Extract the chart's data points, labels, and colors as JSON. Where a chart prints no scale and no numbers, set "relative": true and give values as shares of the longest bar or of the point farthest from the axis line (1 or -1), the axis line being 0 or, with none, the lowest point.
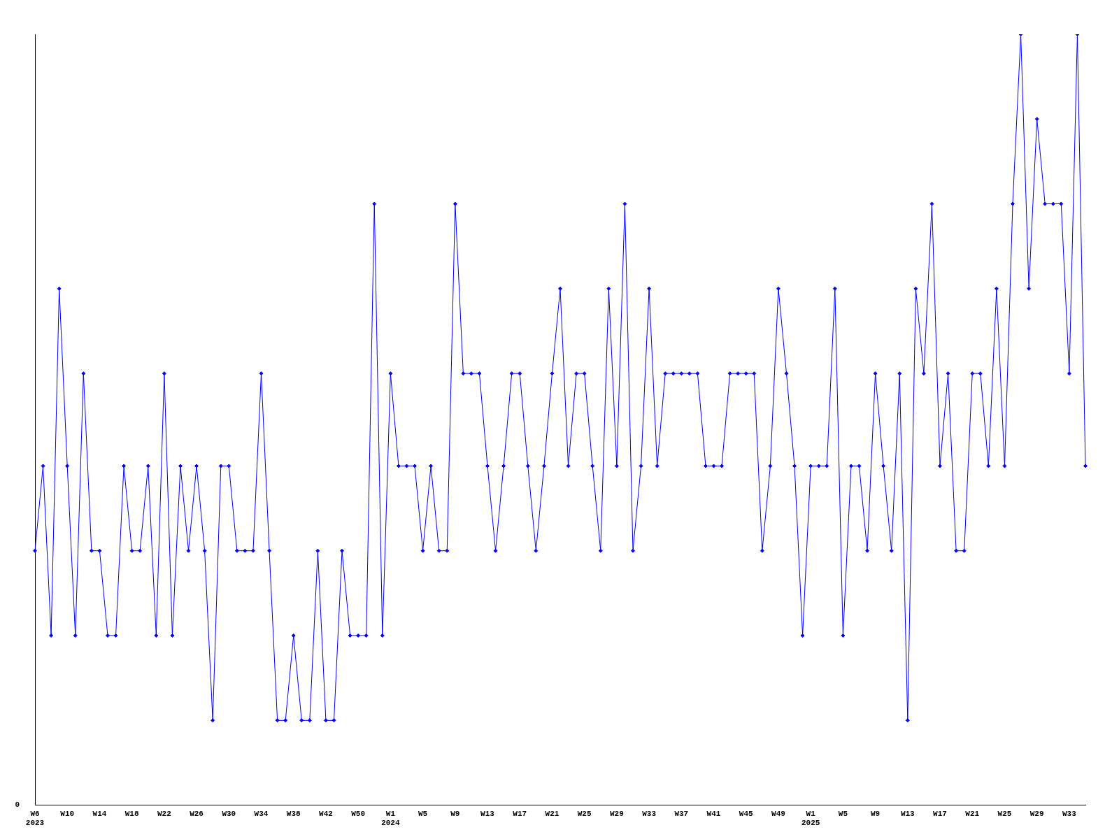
{
  "chart_data": {
    "type": "line",
    "relative": true,
    "color": "#0000ff",
    "marker": "diamond",
    "grid": false,
    "legend": false,
    "annotations": [
      "0"
    ],
    "categories": [
      "W6\n2023",
      null,
      null,
      null,
      "W10",
      null,
      null,
      null,
      "W14",
      null,
      null,
      null,
      "W18",
      null,
      null,
      null,
      "W22",
      null,
      null,
      null,
      "W26",
      null,
      null,
      null,
      "W30",
      null,
      null,
      null,
      "W34",
      null,
      null,
      null,
      "W38",
      null,
      null,
      null,
      "W42",
      null,
      null,
      null,
      "W50",
      null,
      null,
      null,
      "W1\n2024",
      null,
      null,
      null,
      "W5",
      null,
      null,
      null,
      "W9",
      null,
      null,
      null,
      "W13",
      null,
      null,
      null,
      "W17",
      null,
      null,
      null,
      "W21",
      null,
      null,
      null,
      "W25",
      null,
      null,
      null,
      "W29",
      null,
      null,
      null,
      "W33",
      null,
      null,
      null,
      "W37",
      null,
      null,
      null,
      "W41",
      null,
      null,
      null,
      "W45",
      null,
      null,
      null,
      "W49",
      null,
      null,
      null,
      "W1\n2025",
      null,
      null,
      null,
      "W5",
      null,
      null,
      null,
      "W9",
      null,
      null,
      null,
      "W13",
      null,
      null,
      null,
      "W17",
      null,
      null,
      null,
      "W21",
      null,
      null,
      null,
      "W25",
      null,
      null,
      null,
      "W29",
      null,
      null,
      null,
      "W33",
      null,
      null
    ],
    "values": [
      0.33,
      0.44,
      0.22,
      0.67,
      0.44,
      0.22,
      0.56,
      0.33,
      0.33,
      0.22,
      0.22,
      0.44,
      0.33,
      0.33,
      0.44,
      0.22,
      0.56,
      0.22,
      0.44,
      0.33,
      0.44,
      0.33,
      0.11,
      0.44,
      0.44,
      0.33,
      0.33,
      0.33,
      0.56,
      0.33,
      0.11,
      0.11,
      0.22,
      0.11,
      0.11,
      0.33,
      0.11,
      0.11,
      0.33,
      0.22,
      0.22,
      0.22,
      0.78,
      0.22,
      0.56,
      0.44,
      0.44,
      0.44,
      0.33,
      0.44,
      0.33,
      0.33,
      0.78,
      0.56,
      0.56,
      0.56,
      0.44,
      0.33,
      0.44,
      0.56,
      0.56,
      0.44,
      0.33,
      0.44,
      0.56,
      0.67,
      0.44,
      0.56,
      0.56,
      0.44,
      0.33,
      0.67,
      0.44,
      0.78,
      0.33,
      0.44,
      0.67,
      0.44,
      0.56,
      0.56,
      0.56,
      0.56,
      0.56,
      0.44,
      0.44,
      0.44,
      0.56,
      0.56,
      0.56,
      0.56,
      0.33,
      0.44,
      0.67,
      0.56,
      0.44,
      0.22,
      0.44,
      0.44,
      0.44,
      0.67,
      0.22,
      0.44,
      0.44,
      0.33,
      0.56,
      0.44,
      0.33,
      0.56,
      0.11,
      0.67,
      0.56,
      0.78,
      0.44,
      0.56,
      0.33,
      0.33,
      0.56,
      0.56,
      0.44,
      0.67,
      0.44,
      0.78,
      1,
      0.67,
      0.89,
      0.78,
      0.78,
      0.78,
      0.56,
      1,
      0.44
    ]
  }
}
